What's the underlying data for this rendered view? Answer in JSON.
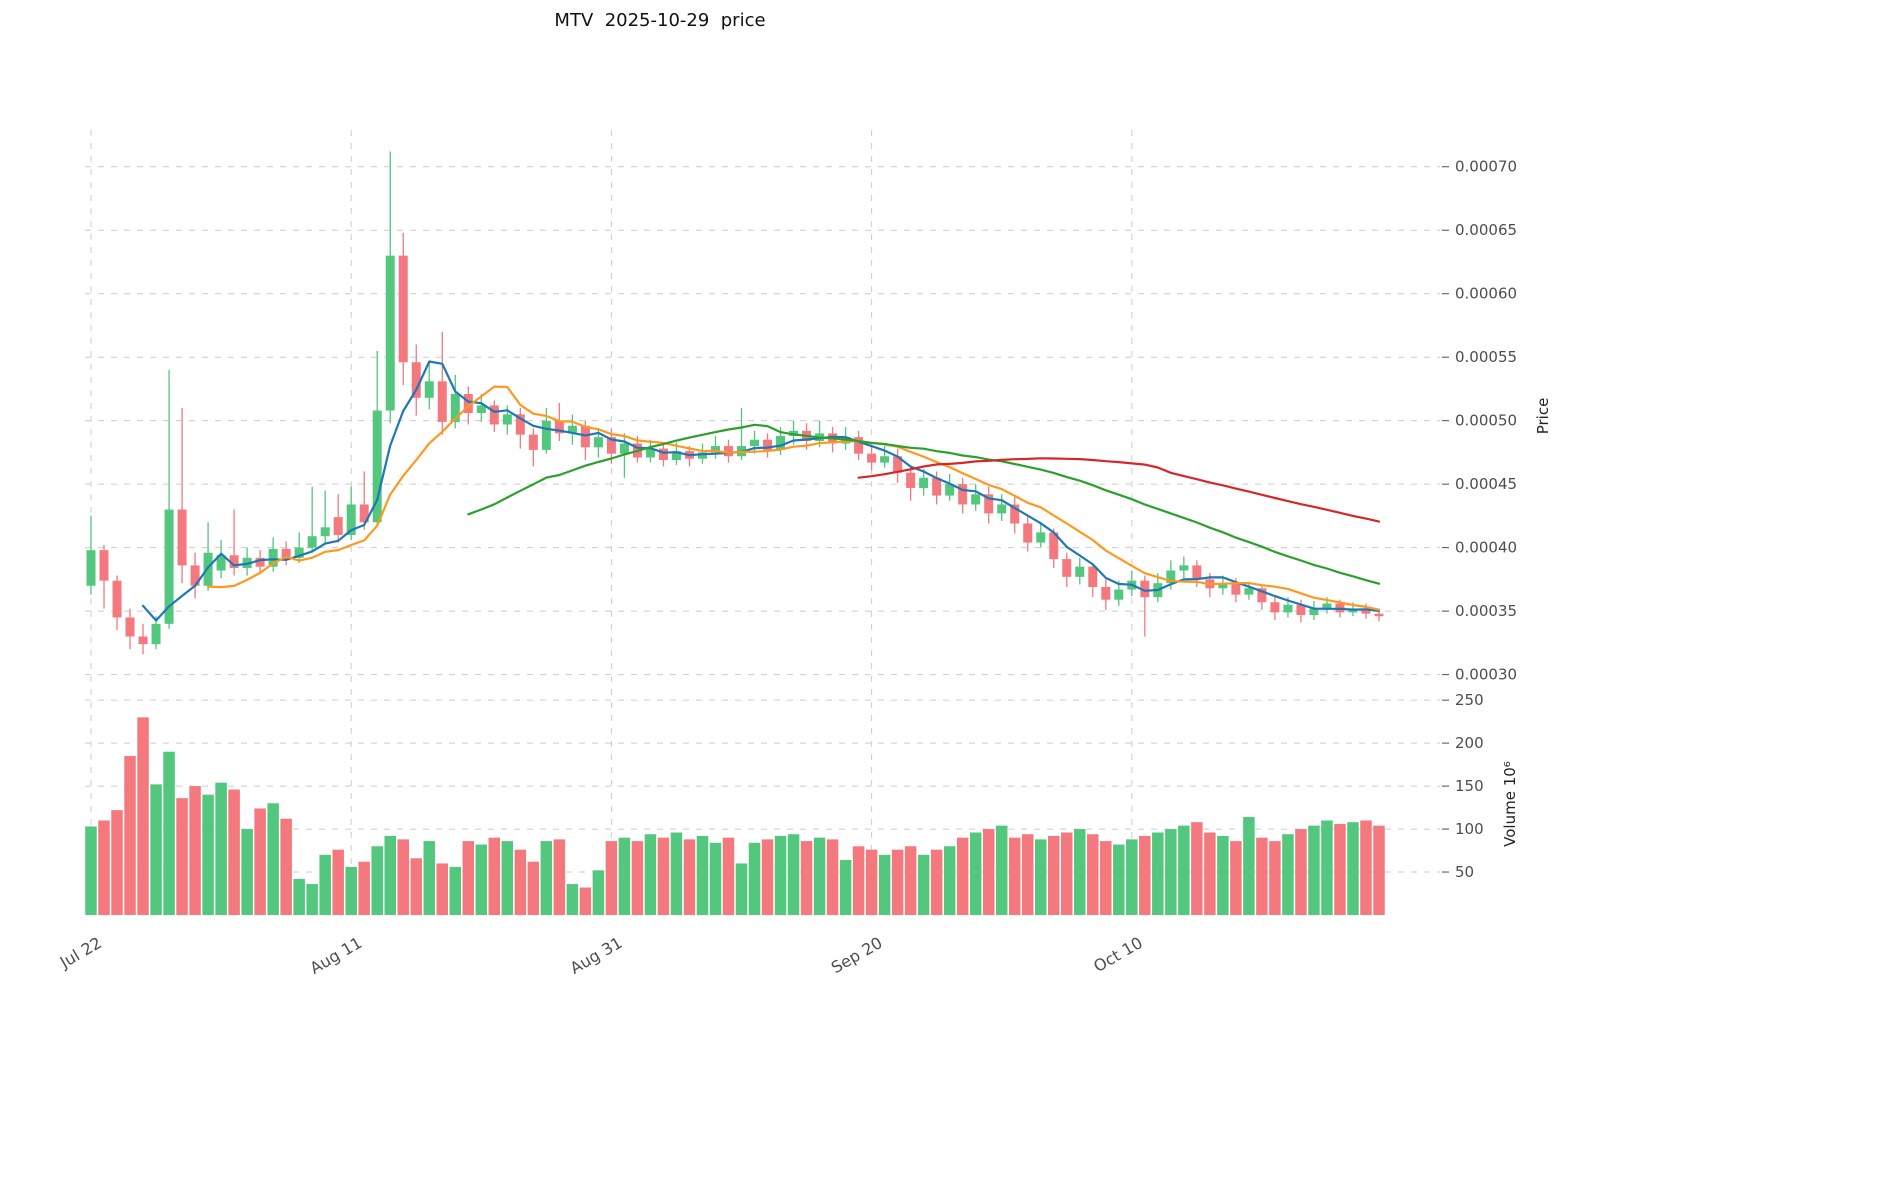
{
  "title": "MTV  2025-10-29  price",
  "axes": {
    "price_label": "Price",
    "volume_label": "Volume 10⁶"
  },
  "chart_data": {
    "type": "candlestick",
    "title": "MTV  2025-10-29  price",
    "legend_position": "none",
    "grid": "dashed",
    "x_ticks": [
      {
        "index": 0,
        "label": "Jul 22"
      },
      {
        "index": 20,
        "label": "Aug 11"
      },
      {
        "index": 40,
        "label": "Aug 31"
      },
      {
        "index": 60,
        "label": "Sep 20"
      },
      {
        "index": 80,
        "label": "Oct 10"
      }
    ],
    "price_axis": {
      "min": 0.00028,
      "max": 0.000725,
      "label": "Price",
      "ticks": [
        {
          "value": 0.0003,
          "label": "0.00030"
        },
        {
          "value": 0.00035,
          "label": "0.00035"
        },
        {
          "value": 0.0004,
          "label": "0.00040"
        },
        {
          "value": 0.00045,
          "label": "0.00045"
        },
        {
          "value": 0.0005,
          "label": "0.00050"
        },
        {
          "value": 0.00055,
          "label": "0.00055"
        },
        {
          "value": 0.0006,
          "label": "0.00060"
        },
        {
          "value": 0.00065,
          "label": "0.00065"
        },
        {
          "value": 0.0007,
          "label": "0.00070"
        }
      ]
    },
    "volume_axis": {
      "max": 256,
      "label": "Volume 10⁶",
      "ticks": [
        {
          "value": 50,
          "label": "50"
        },
        {
          "value": 100,
          "label": "100"
        },
        {
          "value": 150,
          "label": "150"
        },
        {
          "value": 200,
          "label": "200"
        },
        {
          "value": 250,
          "label": "250"
        }
      ]
    },
    "moving_averages": [
      {
        "window": 5,
        "color": "#1f77b4"
      },
      {
        "window": 10,
        "color": "#ff9820"
      },
      {
        "window": 30,
        "color": "#2ca02c"
      },
      {
        "window": 60,
        "color": "#d62728"
      }
    ],
    "colors": {
      "up": "#52c77d",
      "down": "#f3797f",
      "grid": "#cccccc",
      "tick_text": "#4d4d4d"
    },
    "ohlcv_columns": [
      "date",
      "open",
      "high",
      "low",
      "close",
      "volume_millions"
    ],
    "ohlcv": [
      [
        "2025-07-22",
        0.00037,
        0.000425,
        0.000363,
        0.000398,
        103
      ],
      [
        "2025-07-23",
        0.000398,
        0.000402,
        0.000352,
        0.000374,
        110
      ],
      [
        "2025-07-24",
        0.000374,
        0.000378,
        0.000335,
        0.000345,
        122
      ],
      [
        "2025-07-25",
        0.000345,
        0.000352,
        0.00032,
        0.00033,
        185
      ],
      [
        "2025-07-26",
        0.00033,
        0.00034,
        0.000316,
        0.000324,
        230
      ],
      [
        "2025-07-27",
        0.000324,
        0.000346,
        0.00032,
        0.00034,
        152
      ],
      [
        "2025-07-28",
        0.00034,
        0.00054,
        0.000336,
        0.00043,
        190
      ],
      [
        "2025-07-29",
        0.00043,
        0.00051,
        0.000372,
        0.000386,
        136
      ],
      [
        "2025-07-30",
        0.000386,
        0.000396,
        0.00036,
        0.00037,
        150
      ],
      [
        "2025-07-31",
        0.00037,
        0.00042,
        0.000366,
        0.000396,
        140
      ],
      [
        "2025-08-01",
        0.000382,
        0.000406,
        0.000376,
        0.000394,
        154
      ],
      [
        "2025-08-02",
        0.000394,
        0.00043,
        0.000378,
        0.000384,
        146
      ],
      [
        "2025-08-03",
        0.000384,
        0.0004,
        0.000378,
        0.000392,
        100
      ],
      [
        "2025-08-04",
        0.000392,
        0.000398,
        0.000379,
        0.000385,
        124
      ],
      [
        "2025-08-05",
        0.000385,
        0.000408,
        0.000381,
        0.000399,
        130
      ],
      [
        "2025-08-06",
        0.000399,
        0.000405,
        0.000386,
        0.000392,
        112
      ],
      [
        "2025-08-07",
        0.000392,
        0.000412,
        0.000388,
        0.0004,
        42
      ],
      [
        "2025-08-08",
        0.0004,
        0.000448,
        0.000396,
        0.000409,
        36
      ],
      [
        "2025-08-09",
        0.000409,
        0.000445,
        0.000403,
        0.000416,
        70
      ],
      [
        "2025-08-10",
        0.000424,
        0.000442,
        0.000404,
        0.00041,
        76
      ],
      [
        "2025-08-11",
        0.00041,
        0.000448,
        0.000406,
        0.000434,
        56
      ],
      [
        "2025-08-12",
        0.000434,
        0.00046,
        0.000414,
        0.00042,
        62
      ],
      [
        "2025-08-13",
        0.00042,
        0.000555,
        0.000417,
        0.000508,
        80
      ],
      [
        "2025-08-14",
        0.000508,
        0.000712,
        0.000498,
        0.00063,
        92
      ],
      [
        "2025-08-15",
        0.00063,
        0.000648,
        0.000528,
        0.000546,
        88
      ],
      [
        "2025-08-16",
        0.000546,
        0.00056,
        0.000504,
        0.000518,
        66
      ],
      [
        "2025-08-17",
        0.000518,
        0.000546,
        0.000509,
        0.000531,
        86
      ],
      [
        "2025-08-18",
        0.000531,
        0.00057,
        0.000489,
        0.000499,
        60
      ],
      [
        "2025-08-19",
        0.000499,
        0.000536,
        0.000494,
        0.000521,
        56
      ],
      [
        "2025-08-20",
        0.000521,
        0.000527,
        0.000497,
        0.000506,
        86
      ],
      [
        "2025-08-21",
        0.000506,
        0.000521,
        0.000499,
        0.000512,
        82
      ],
      [
        "2025-08-22",
        0.000512,
        0.000516,
        0.000491,
        0.000497,
        90
      ],
      [
        "2025-08-23",
        0.000497,
        0.000512,
        0.000489,
        0.000505,
        86
      ],
      [
        "2025-08-24",
        0.000505,
        0.00051,
        0.000478,
        0.000489,
        76
      ],
      [
        "2025-08-25",
        0.000489,
        0.000494,
        0.000464,
        0.000477,
        62
      ],
      [
        "2025-08-26",
        0.000477,
        0.00051,
        0.000474,
        0.0005,
        86
      ],
      [
        "2025-08-27",
        0.0005,
        0.000514,
        0.000484,
        0.00049,
        88
      ],
      [
        "2025-08-28",
        0.00049,
        0.000505,
        0.000481,
        0.000496,
        36
      ],
      [
        "2025-08-29",
        0.000496,
        0.0005,
        0.000469,
        0.000479,
        32
      ],
      [
        "2025-08-30",
        0.000479,
        0.000494,
        0.000471,
        0.000487,
        52
      ],
      [
        "2025-08-31",
        0.000487,
        0.000494,
        0.000466,
        0.000474,
        86
      ],
      [
        "2025-09-01",
        0.000474,
        0.00049,
        0.000455,
        0.000482,
        90
      ],
      [
        "2025-09-02",
        0.000482,
        0.000488,
        0.000467,
        0.000471,
        86
      ],
      [
        "2025-09-03",
        0.000471,
        0.000485,
        0.000467,
        0.000478,
        94
      ],
      [
        "2025-09-04",
        0.000478,
        0.000482,
        0.000464,
        0.000469,
        90
      ],
      [
        "2025-09-05",
        0.000469,
        0.000483,
        0.000465,
        0.000476,
        96
      ],
      [
        "2025-09-06",
        0.000476,
        0.00048,
        0.000464,
        0.00047,
        88
      ],
      [
        "2025-09-07",
        0.00047,
        0.000482,
        0.000466,
        0.000475,
        92
      ],
      [
        "2025-09-08",
        0.000475,
        0.000488,
        0.00047,
        0.00048,
        84
      ],
      [
        "2025-09-09",
        0.00048,
        0.000485,
        0.000467,
        0.000472,
        90
      ],
      [
        "2025-09-10",
        0.000472,
        0.00051,
        0.000469,
        0.00048,
        60
      ],
      [
        "2025-09-11",
        0.00048,
        0.000492,
        0.000474,
        0.000485,
        84
      ],
      [
        "2025-09-12",
        0.000485,
        0.00049,
        0.000471,
        0.000477,
        88
      ],
      [
        "2025-09-13",
        0.000477,
        0.000495,
        0.000473,
        0.000488,
        92
      ],
      [
        "2025-09-14",
        0.000488,
        0.0005,
        0.000481,
        0.000492,
        94
      ],
      [
        "2025-09-15",
        0.000492,
        0.000498,
        0.000477,
        0.000484,
        86
      ],
      [
        "2025-09-16",
        0.000484,
        0.0005,
        0.000479,
        0.00049,
        90
      ],
      [
        "2025-09-17",
        0.00049,
        0.000495,
        0.000475,
        0.000482,
        88
      ],
      [
        "2025-09-18",
        0.000482,
        0.000495,
        0.000477,
        0.000487,
        64
      ],
      [
        "2025-09-19",
        0.000487,
        0.000492,
        0.000469,
        0.000474,
        80
      ],
      [
        "2025-09-20",
        0.000474,
        0.00048,
        0.000461,
        0.000467,
        76
      ],
      [
        "2025-09-21",
        0.000467,
        0.00048,
        0.000463,
        0.000472,
        70
      ],
      [
        "2025-09-22",
        0.000472,
        0.000478,
        0.000451,
        0.000459,
        76
      ],
      [
        "2025-09-23",
        0.000459,
        0.000465,
        0.000437,
        0.000447,
        80
      ],
      [
        "2025-09-24",
        0.000447,
        0.000462,
        0.000441,
        0.000455,
        70
      ],
      [
        "2025-09-25",
        0.000455,
        0.00046,
        0.000434,
        0.000441,
        76
      ],
      [
        "2025-09-26",
        0.000441,
        0.000458,
        0.000437,
        0.00045,
        80
      ],
      [
        "2025-09-27",
        0.00045,
        0.000455,
        0.000427,
        0.000434,
        90
      ],
      [
        "2025-09-28",
        0.000434,
        0.00045,
        0.000429,
        0.000442,
        96
      ],
      [
        "2025-09-29",
        0.000442,
        0.000448,
        0.000419,
        0.000427,
        100
      ],
      [
        "2025-09-30",
        0.000427,
        0.000442,
        0.000421,
        0.000434,
        104
      ],
      [
        "2025-10-01",
        0.000434,
        0.00044,
        0.000411,
        0.000419,
        90
      ],
      [
        "2025-10-02",
        0.000419,
        0.000425,
        0.000397,
        0.000404,
        94
      ],
      [
        "2025-10-03",
        0.000404,
        0.00042,
        0.0004,
        0.000412,
        88
      ],
      [
        "2025-10-04",
        0.000412,
        0.000415,
        0.000384,
        0.000391,
        92
      ],
      [
        "2025-10-05",
        0.000391,
        0.000396,
        0.000369,
        0.000377,
        96
      ],
      [
        "2025-10-06",
        0.000377,
        0.000392,
        0.000371,
        0.000385,
        100
      ],
      [
        "2025-10-07",
        0.000385,
        0.000388,
        0.000361,
        0.000369,
        94
      ],
      [
        "2025-10-08",
        0.000369,
        0.000375,
        0.000351,
        0.000359,
        86
      ],
      [
        "2025-10-09",
        0.000359,
        0.000374,
        0.000354,
        0.000367,
        82
      ],
      [
        "2025-10-10",
        0.000367,
        0.000382,
        0.000362,
        0.000374,
        88
      ],
      [
        "2025-10-11",
        0.000374,
        0.000378,
        0.00033,
        0.000361,
        92
      ],
      [
        "2025-10-12",
        0.000361,
        0.00038,
        0.000357,
        0.000372,
        96
      ],
      [
        "2025-10-13",
        0.000372,
        0.00039,
        0.000367,
        0.000382,
        100
      ],
      [
        "2025-10-14",
        0.000382,
        0.000393,
        0.000376,
        0.000386,
        104
      ],
      [
        "2025-10-15",
        0.000386,
        0.00039,
        0.000369,
        0.000375,
        108
      ],
      [
        "2025-10-16",
        0.000375,
        0.00038,
        0.000361,
        0.000368,
        96
      ],
      [
        "2025-10-17",
        0.000368,
        0.000378,
        0.000363,
        0.000372,
        92
      ],
      [
        "2025-10-18",
        0.000372,
        0.000376,
        0.000357,
        0.000363,
        86
      ],
      [
        "2025-10-19",
        0.000363,
        0.000373,
        0.000359,
        0.000368,
        114
      ],
      [
        "2025-10-20",
        0.000368,
        0.000371,
        0.000351,
        0.000357,
        90
      ],
      [
        "2025-10-21",
        0.000357,
        0.000362,
        0.000343,
        0.000349,
        86
      ],
      [
        "2025-10-22",
        0.000349,
        0.000361,
        0.000345,
        0.000355,
        94
      ],
      [
        "2025-10-23",
        0.000355,
        0.000359,
        0.000341,
        0.000347,
        100
      ],
      [
        "2025-10-24",
        0.000347,
        0.000358,
        0.000343,
        0.000352,
        104
      ],
      [
        "2025-10-25",
        0.000352,
        0.000361,
        0.000348,
        0.000356,
        110
      ],
      [
        "2025-10-26",
        0.000356,
        0.000359,
        0.000345,
        0.000349,
        106
      ],
      [
        "2025-10-27",
        0.000349,
        0.000357,
        0.000346,
        0.000352,
        108
      ],
      [
        "2025-10-28",
        0.000352,
        0.000356,
        0.000344,
        0.000348,
        110
      ],
      [
        "2025-10-29",
        0.000348,
        0.000352,
        0.000342,
        0.000346,
        104
      ]
    ]
  }
}
